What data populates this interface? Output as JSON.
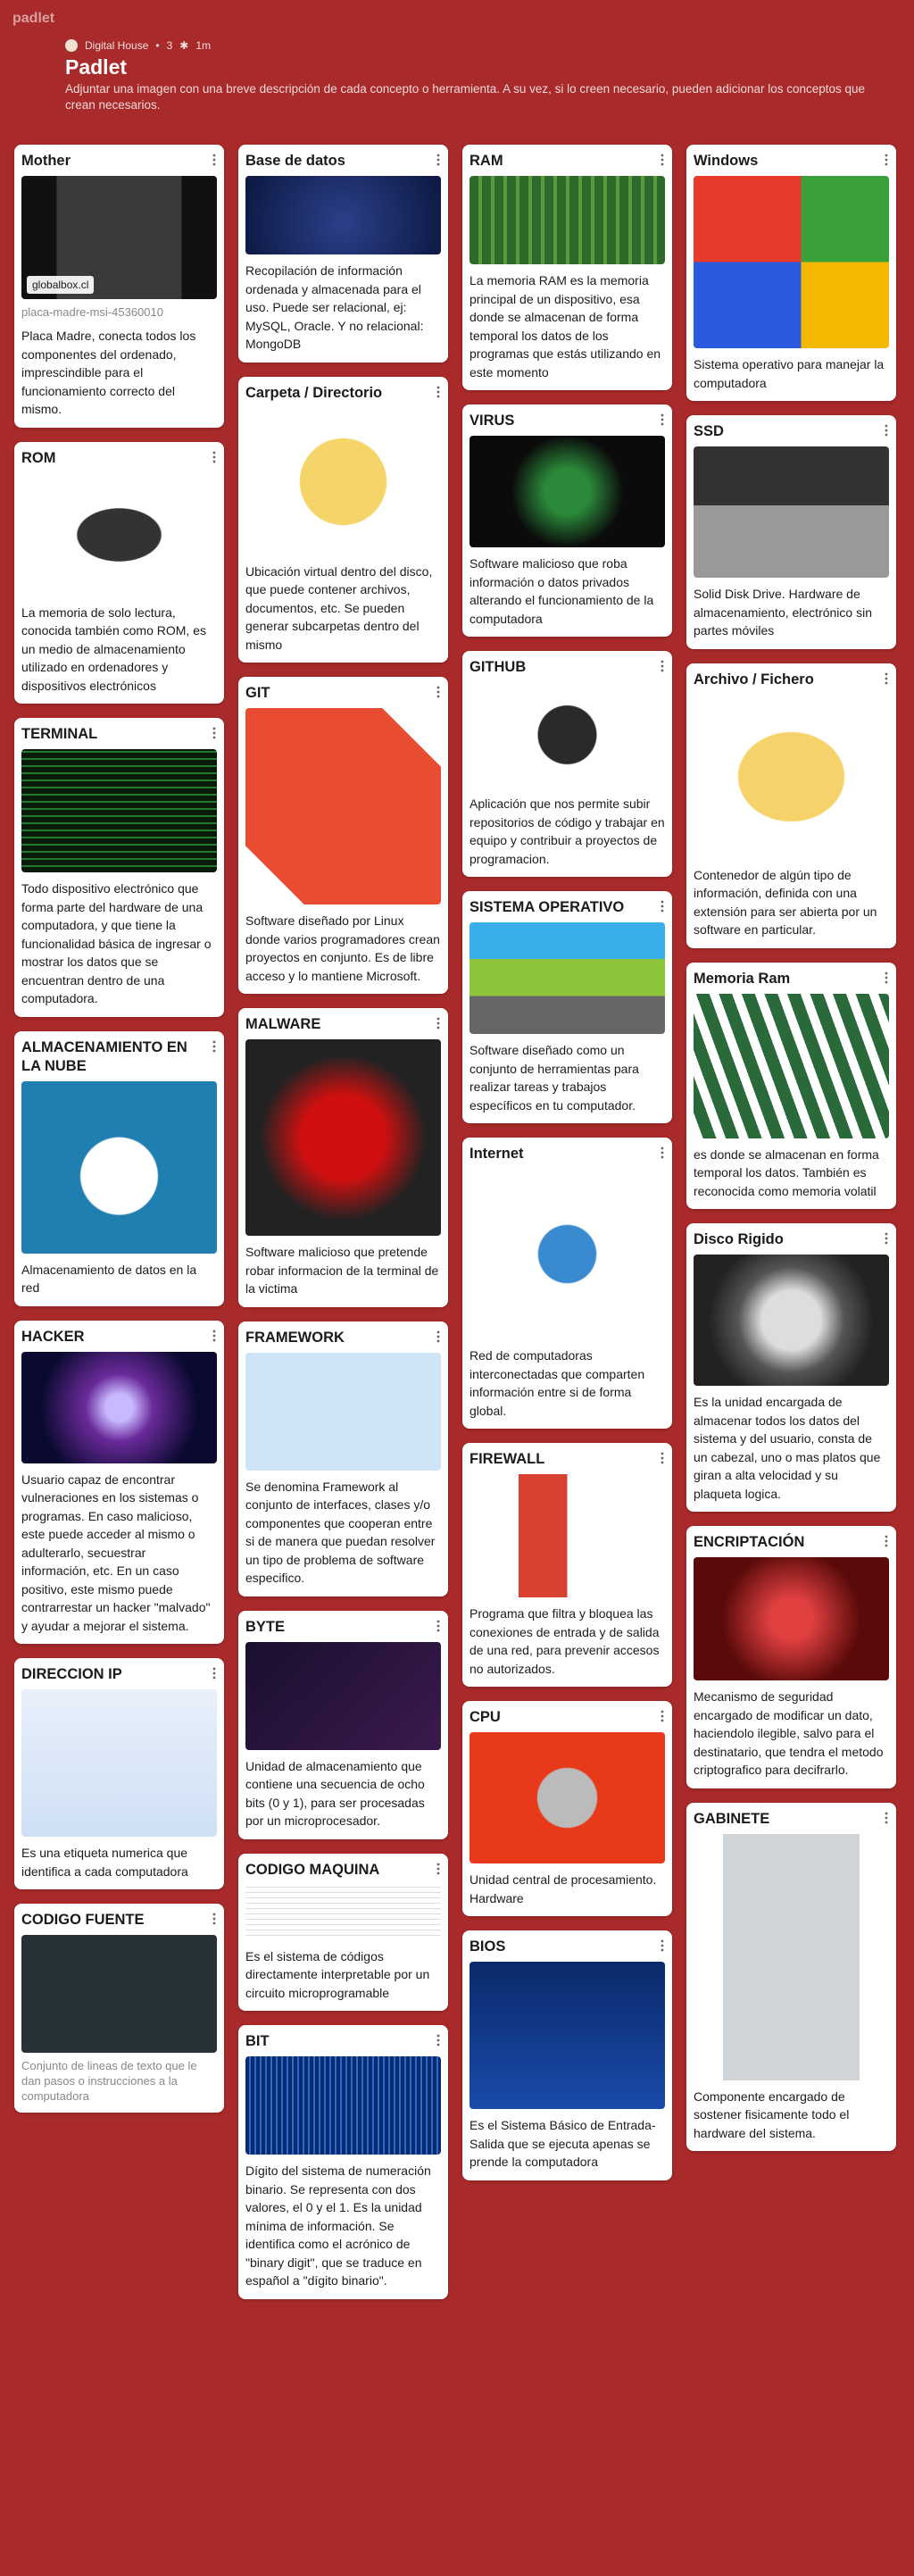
{
  "header": {
    "brand": "padlet",
    "author": "Digital House",
    "likes": "3",
    "time": "1m",
    "title": "Padlet",
    "description": "Adjuntar una imagen con una breve descripción de cada concepto o herramienta. A su vez, si lo creen necesario, pueden adicionar los conceptos que crean necesarios."
  },
  "columns": [
    [
      {
        "title": "Mother",
        "link": "globalbox.cl",
        "caption": "placa-madre-msi-45360010",
        "text": "Placa Madre, conecta todos los componentes del ordenado, imprescindible para el funcionamiento correcto del mismo."
      },
      {
        "title": "ROM",
        "text": "La memoria de solo lectura, conocida también como ROM, es un medio de almacenamiento utilizado en ordenadores y dispositivos electrónicos"
      },
      {
        "title": "TERMINAL",
        "text": "Todo dispositivo electrónico que forma parte del hardware de una computadora, y que tiene la funcionalidad básica de ingresar o mostrar los datos que se encuentran dentro de una computadora."
      },
      {
        "title": "ALMACENAMIENTO EN LA NUBE",
        "text": "Almacenamiento de datos en la red"
      },
      {
        "title": "HACKER",
        "text": "Usuario capaz de encontrar vulneraciones en los sistemas o programas. En caso malicioso, este puede acceder al mismo o adulterarlo, secuestrar información, etc. En un caso positivo, este mismo puede contrarrestar un hacker \"malvado\" y ayudar a mejorar el sistema."
      },
      {
        "title": "DIRECCION IP",
        "text": "Es una etiqueta numerica que identifica a cada computadora"
      },
      {
        "title": "CODIGO FUENTE",
        "caption": "Conjunto de lineas de texto que le dan pasos o instrucciones a la computadora"
      }
    ],
    [
      {
        "title": "Base de datos",
        "text": "Recopilación de información ordenada y almacenada para el uso. Puede ser relacional, ej: MySQL, Oracle. Y no relacional: MongoDB"
      },
      {
        "title": "Carpeta / Directorio",
        "text": "Ubicación virtual dentro del disco, que puede contener archivos, documentos, etc. Se pueden generar subcarpetas dentro del mismo"
      },
      {
        "title": "GIT",
        "text": "Software diseñado por Linux donde varios programadores crean proyectos en conjunto. Es de libre acceso y lo mantiene Microsoft."
      },
      {
        "title": "MALWARE",
        "text": "Software malicioso que pretende robar informacion de la terminal de la victima"
      },
      {
        "title": "FRAMEWORK",
        "text": "Se denomina Framework al conjunto de interfaces, clases y/o componentes que cooperan entre si de manera que puedan resolver un tipo de problema de software especifico."
      },
      {
        "title": "BYTE",
        "text": "Unidad de almacenamiento que contiene una secuencia de ocho bits (0 y 1), para ser procesadas por un microprocesador."
      },
      {
        "title": "CODIGO MAQUINA",
        "text": "Es el sistema de códigos directamente interpretable por un circuito microprogramable"
      },
      {
        "title": "BIT",
        "text": "Dígito del sistema de numeración binario. Se representa con dos valores, el 0 y el 1. Es la unidad mínima de información. Se identifica como el acrónico de \"binary digit\", que se traduce en español a \"dígito binario\"."
      }
    ],
    [
      {
        "title": "RAM",
        "text": "La memoria RAM es la memoria principal de un dispositivo, esa donde se almacenan de forma temporal los datos de los programas que estás utilizando en este momento"
      },
      {
        "title": "VIRUS",
        "text": "Software malicioso que roba información o datos privados alterando el funcionamiento de la computadora"
      },
      {
        "title": "GITHUB",
        "text": "Aplicación que nos permite subir repositorios de código y trabajar en equipo y contribuir a proyectos de programacion."
      },
      {
        "title": "SISTEMA OPERATIVO",
        "text": "Software diseñado como un conjunto de herramientas para realizar tareas y trabajos específicos en tu computador."
      },
      {
        "title": "Internet",
        "text": "Red de computadoras interconectadas que comparten información entre si de forma global."
      },
      {
        "title": "FIREWALL",
        "text": "Programa que filtra y bloquea las conexiones de entrada y de salida de una red, para prevenir accesos no autorizados."
      },
      {
        "title": "CPU",
        "text": "Unidad central de procesamiento. Hardware"
      },
      {
        "title": "BIOS",
        "text": "Es el Sistema Básico de Entrada-Salida que se ejecuta apenas se prende la computadora"
      }
    ],
    [
      {
        "title": "Windows",
        "text": "Sistema operativo para manejar la computadora"
      },
      {
        "title": "SSD",
        "text": "Solid Disk Drive. Hardware de almacenamiento, electrónico sin partes móviles"
      },
      {
        "title": "Archivo / Fichero",
        "text": "Contenedor de algún tipo de información, definida con una extensión para ser abierta por un software en particular."
      },
      {
        "title": "Memoria Ram",
        "text": "es donde se almacenan en forma temporal los datos. También es reconocida como memoria volatil"
      },
      {
        "title": "Disco Rigido",
        "text": "Es la unidad encargada de almacenar todos los datos del sistema y del usuario, consta de un cabezal, uno o mas platos que giran a alta velocidad y su plaqueta logica."
      },
      {
        "title": "ENCRIPTACIÓN",
        "text": "Mecanismo de seguridad encargado de modificar un dato, haciendolo ilegible, salvo para el destinatario, que tendra el metodo criptografico para decifrarlo."
      },
      {
        "title": "GABINETE",
        "text": "Componente encargado de sostener fisicamente todo el hardware del sistema."
      }
    ]
  ]
}
